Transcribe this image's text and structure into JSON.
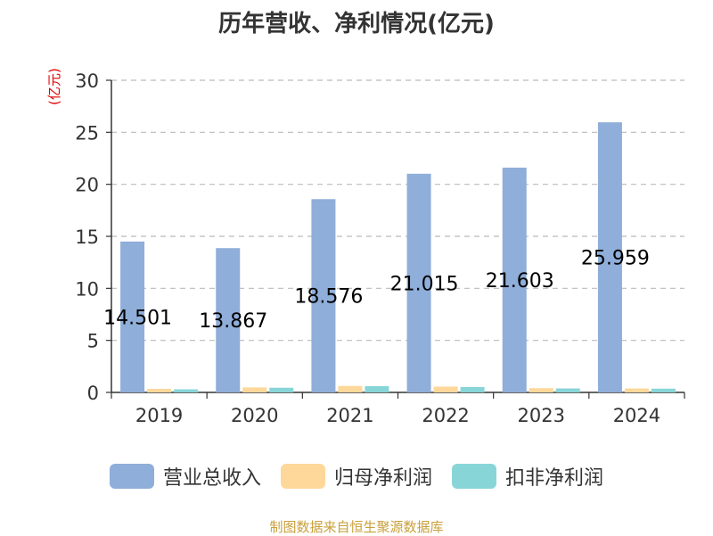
{
  "chart_data": {
    "type": "bar",
    "title": "历年营收、净利情况(亿元)",
    "y_unit": "(亿元)",
    "categories": [
      "2019",
      "2020",
      "2021",
      "2022",
      "2023",
      "2024"
    ],
    "series": [
      {
        "name": "营业总收入",
        "color": "#8faed9",
        "values": [
          14.501,
          13.867,
          18.576,
          21.015,
          21.603,
          25.959
        ]
      },
      {
        "name": "归母净利润",
        "color": "#fdd89a",
        "values": [
          0.34,
          0.48,
          0.62,
          0.56,
          0.41,
          0.38
        ]
      },
      {
        "name": "扣非净利润",
        "color": "#88d5d8",
        "values": [
          0.3,
          0.45,
          0.6,
          0.52,
          0.38,
          0.36
        ]
      }
    ],
    "data_labels": [
      "14.501",
      "13.867",
      "18.576",
      "21.015",
      "21.603",
      "25.959"
    ],
    "ylim": [
      0,
      30
    ],
    "yticks": [
      0,
      5,
      10,
      15,
      20,
      25,
      30
    ],
    "grid": true,
    "legend_position": "bottom"
  },
  "footer": {
    "source": "制图数据来自恒生聚源数据库"
  }
}
